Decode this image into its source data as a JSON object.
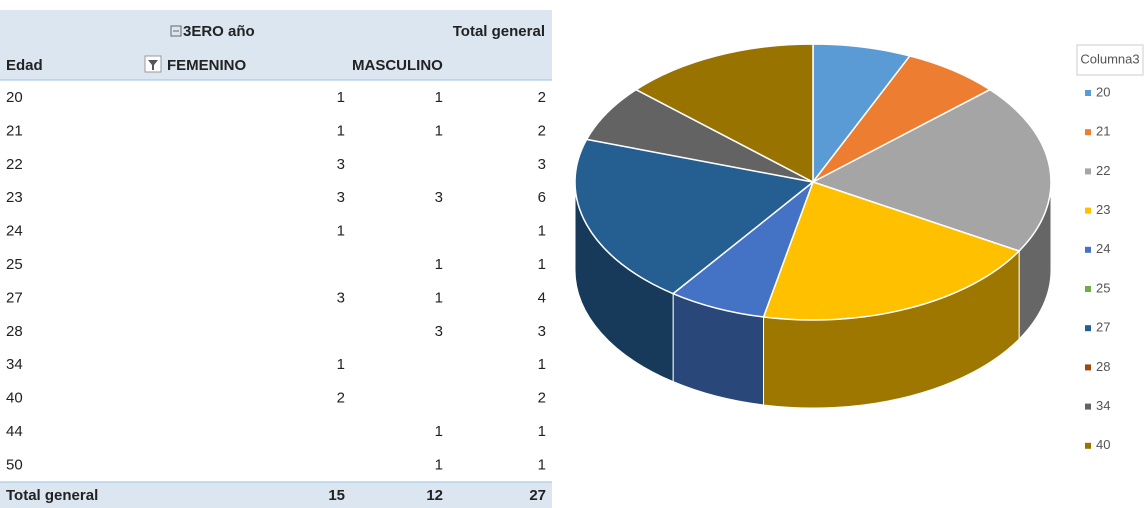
{
  "table": {
    "group_header": "3ERO año",
    "total_header": "Total general",
    "row_header": "Edad",
    "columns": [
      "FEMENINO",
      "MASCULINO"
    ],
    "rows": [
      [
        "20",
        "1",
        "1",
        "2"
      ],
      [
        "21",
        "1",
        "1",
        "2"
      ],
      [
        "22",
        "3",
        null,
        "3"
      ],
      [
        "23",
        "3",
        "3",
        "6"
      ],
      [
        "24",
        "1",
        null,
        "1"
      ],
      [
        "25",
        null,
        "1",
        "1"
      ],
      [
        "27",
        "3",
        "1",
        "4"
      ],
      [
        "28",
        null,
        "3",
        "3"
      ],
      [
        "34",
        "1",
        null,
        "1"
      ],
      [
        "40",
        "2",
        null,
        "2"
      ],
      [
        "44",
        null,
        "1",
        "1"
      ],
      [
        "50",
        null,
        "1",
        "1"
      ]
    ],
    "total_row": [
      "Total general",
      "15",
      "12",
      "27"
    ]
  },
  "chart_data": {
    "type": "pie",
    "legend_title": "Columna3",
    "categories": [
      "20",
      "21",
      "22",
      "23",
      "24",
      "25",
      "27",
      "28",
      "34",
      "40"
    ],
    "values": [
      1,
      1,
      3,
      3,
      1,
      null,
      3,
      null,
      1,
      2
    ],
    "colors": [
      "#5b9bd5",
      "#ed7d31",
      "#a5a5a5",
      "#ffc000",
      "#4472c4",
      "#70ad47",
      "#255e91",
      "#9e480e",
      "#636363",
      "#997300"
    ],
    "legend": "right"
  }
}
